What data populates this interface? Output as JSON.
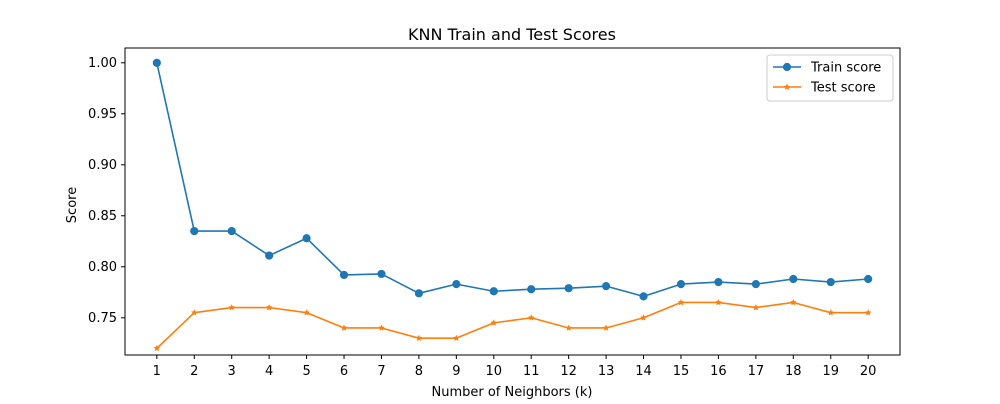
{
  "chart_data": {
    "type": "line",
    "title": "KNN Train and Test Scores",
    "xlabel": "Number of Neighbors (k)",
    "ylabel": "Score",
    "x": [
      1,
      2,
      3,
      4,
      5,
      6,
      7,
      8,
      9,
      10,
      11,
      12,
      13,
      14,
      15,
      16,
      17,
      18,
      19,
      20
    ],
    "xlim": [
      0.15,
      20.85
    ],
    "ylim": [
      0.7135,
      1.0145
    ],
    "yticks": [
      "0.75",
      "0.80",
      "0.85",
      "0.90",
      "0.95",
      "1.00"
    ],
    "grid": false,
    "legend_position": "top-right",
    "series": [
      {
        "name": "Train score",
        "color": "#1f77b4",
        "marker": "circle",
        "values": [
          1.0,
          0.835,
          0.835,
          0.811,
          0.828,
          0.792,
          0.793,
          0.774,
          0.783,
          0.776,
          0.778,
          0.779,
          0.781,
          0.771,
          0.783,
          0.785,
          0.783,
          0.788,
          0.785,
          0.788
        ]
      },
      {
        "name": "Test score",
        "color": "#ff7f0e",
        "marker": "star",
        "values": [
          0.72,
          0.755,
          0.76,
          0.76,
          0.755,
          0.74,
          0.74,
          0.73,
          0.73,
          0.745,
          0.75,
          0.74,
          0.74,
          0.75,
          0.765,
          0.765,
          0.76,
          0.765,
          0.755,
          0.755
        ]
      }
    ]
  }
}
